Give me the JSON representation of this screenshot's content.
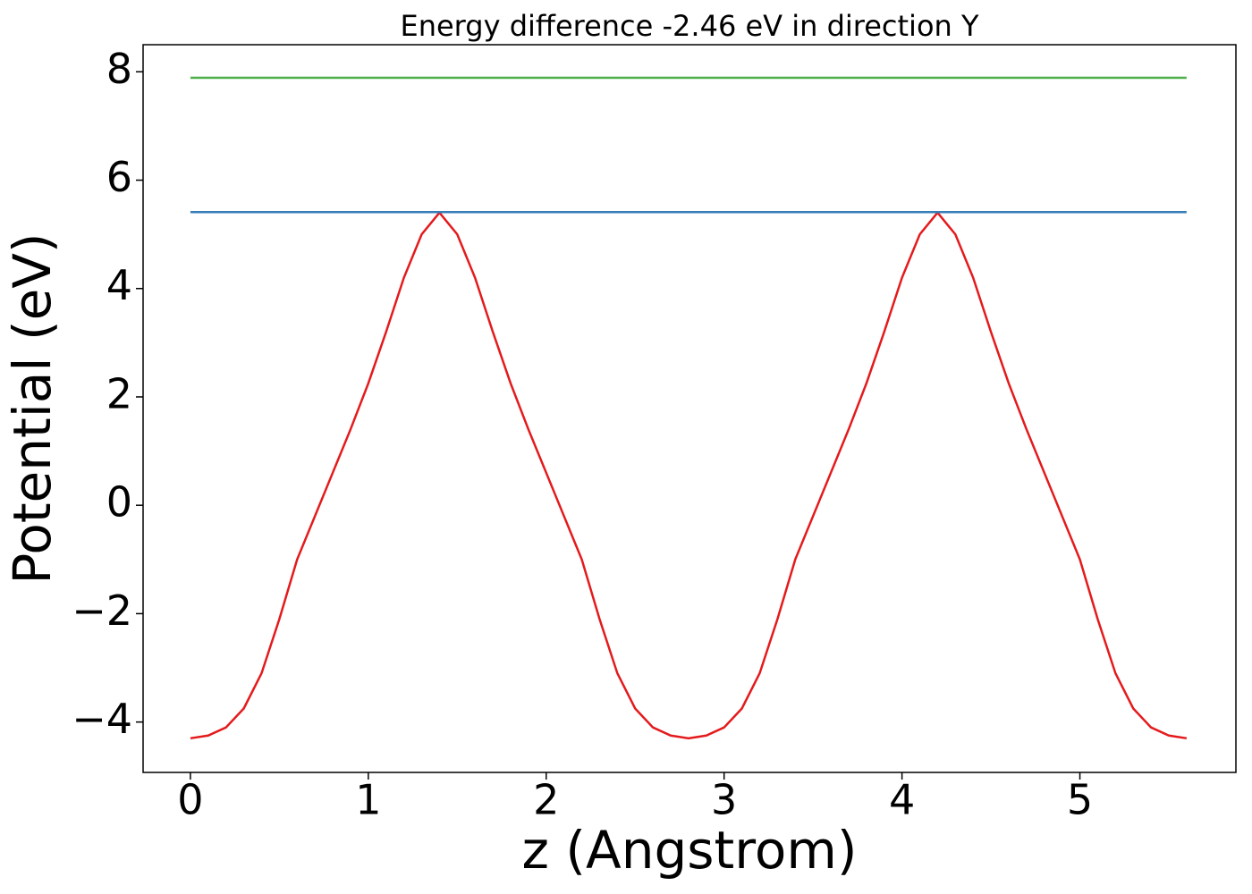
{
  "chart_data": {
    "type": "line",
    "title": "Energy difference -2.46 eV in direction Y",
    "x_label": "z (Angstrom)",
    "y_label": "Potential (eV)",
    "xlim": [
      -0.266,
      5.877
    ],
    "ylim": [
      -4.93,
      8.5
    ],
    "xticks": [
      0,
      1,
      2,
      3,
      4,
      5
    ],
    "yticks": [
      {
        "value": -4,
        "label": "−4"
      },
      {
        "value": -2,
        "label": "−2"
      },
      0,
      2,
      4,
      6,
      8
    ],
    "series": [
      {
        "color": "#e41a1c",
        "x": [
          0,
          0.1,
          0.2,
          0.3,
          0.4,
          0.5,
          0.6,
          0.7,
          0.8,
          0.9,
          1.0,
          1.1,
          1.2,
          1.3,
          1.4,
          1.5,
          1.6,
          1.7,
          1.8,
          1.9,
          2.0,
          2.1,
          2.2,
          2.3,
          2.4,
          2.5,
          2.6,
          2.7,
          2.8,
          2.9,
          3.0,
          3.1,
          3.2,
          3.3,
          3.4,
          3.5,
          3.6,
          3.7,
          3.8,
          3.9,
          4.0,
          4.1,
          4.2,
          4.3,
          4.4,
          4.5,
          4.6,
          4.7,
          4.8,
          4.9,
          5.0,
          5.1,
          5.2,
          5.3,
          5.4,
          5.5,
          5.6
        ],
        "values": [
          -4.3,
          -4.25,
          -4.1,
          -3.75,
          -3.1,
          -2.1,
          -1.0,
          -0.2,
          0.6,
          1.4,
          2.25,
          3.2,
          4.2,
          5.0,
          5.4,
          5.0,
          4.2,
          3.2,
          2.25,
          1.4,
          0.6,
          -0.2,
          -1.0,
          -2.1,
          -3.1,
          -3.75,
          -4.1,
          -4.25,
          -4.3,
          -4.25,
          -4.1,
          -3.75,
          -3.1,
          -2.1,
          -1.0,
          -0.2,
          0.6,
          1.4,
          2.25,
          3.2,
          4.2,
          5.0,
          5.4,
          5.0,
          4.2,
          3.2,
          2.25,
          1.4,
          0.6,
          -0.2,
          -1.0,
          -2.1,
          -3.1,
          -3.75,
          -4.1,
          -4.25,
          -4.3
        ]
      },
      {
        "color": "#377eb8",
        "x": [
          0,
          5.6
        ],
        "values": [
          5.41,
          5.41
        ]
      },
      {
        "color": "#4daf4a",
        "x": [
          0,
          5.6
        ],
        "values": [
          7.89,
          7.89
        ]
      }
    ]
  }
}
